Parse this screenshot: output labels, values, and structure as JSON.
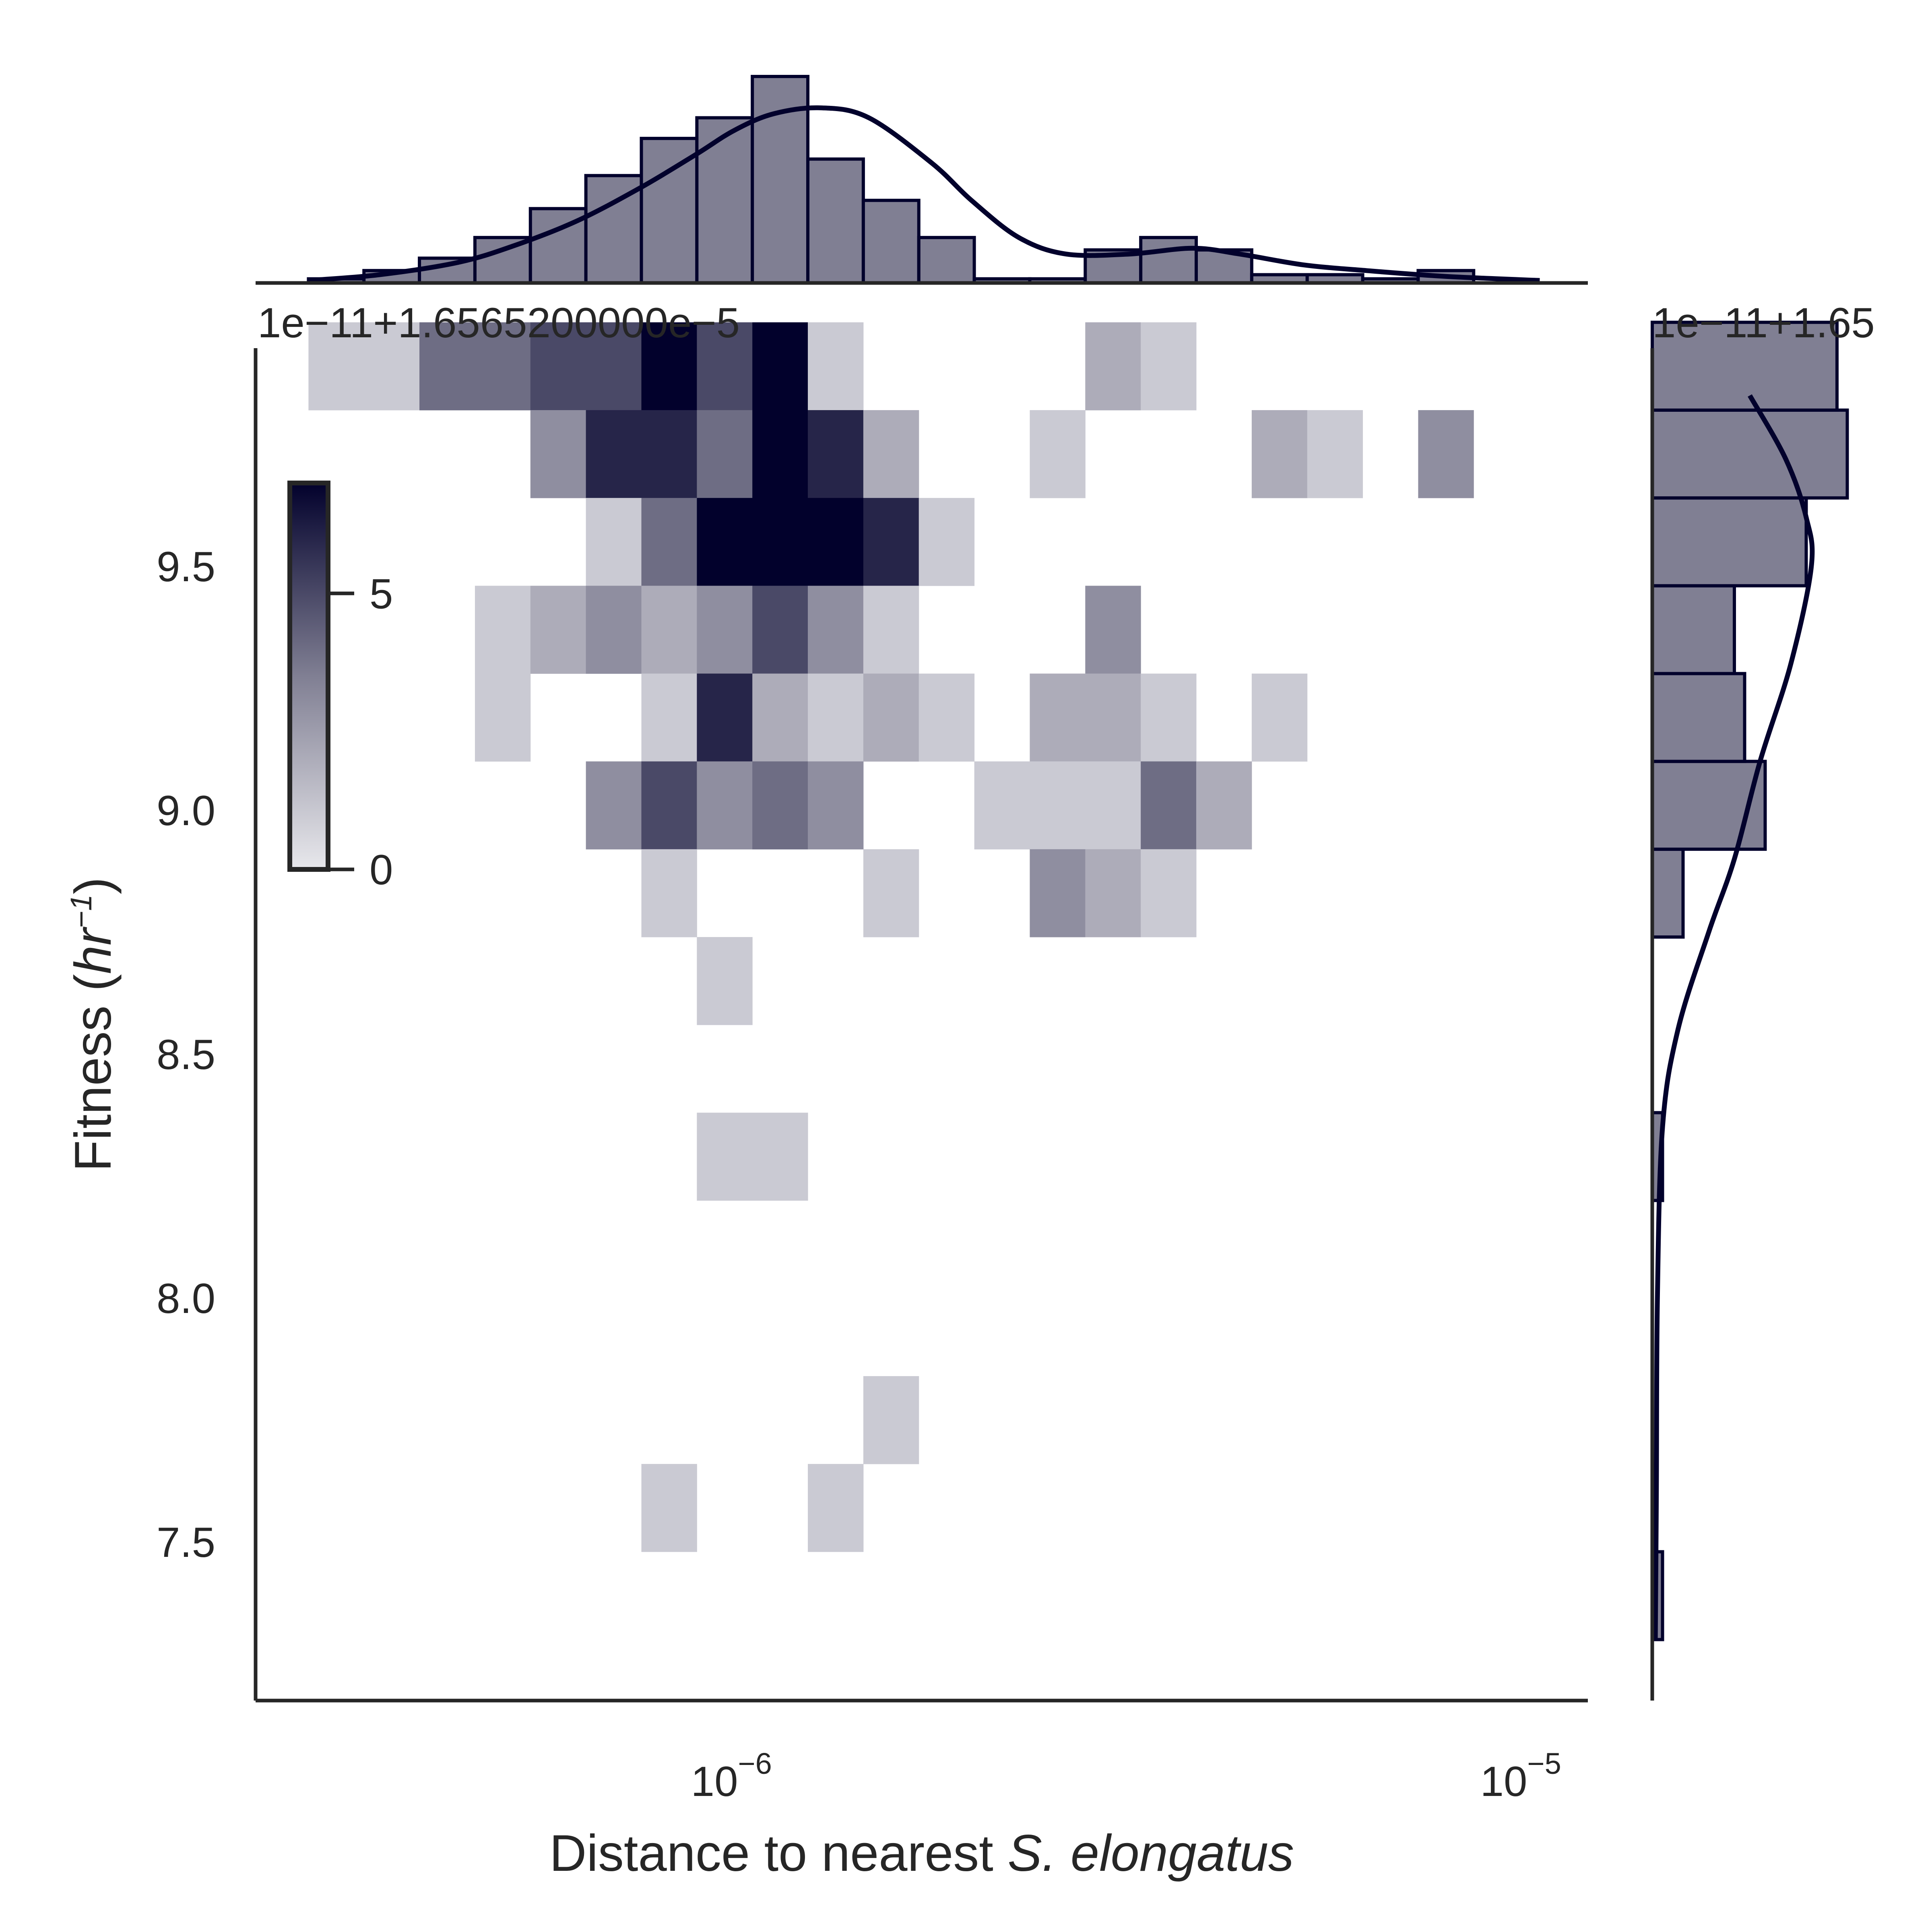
{
  "chart_data": {
    "type": "heatmap",
    "subtype": "jointplot-2d-histogram",
    "xlabel": {
      "pre": "Distance to nearest ",
      "italic": "S. elongatus"
    },
    "ylabel": {
      "pre": "Fitness (",
      "italic": "hr",
      "sup": "−1",
      "post": ")"
    },
    "x_scale": "log",
    "x_log_range": [
      -6.607,
      -4.919
    ],
    "y_range": [
      7.175,
      9.947
    ],
    "x_ticks": [
      {
        "log": -6,
        "base": "10",
        "exp": "−6"
      },
      {
        "log": -5,
        "base": "10",
        "exp": "−5"
      }
    ],
    "y_ticks": [
      {
        "value": 9.5,
        "label": "9.5"
      },
      {
        "value": 9.0,
        "label": "9.0"
      },
      {
        "value": 8.5,
        "label": "8.5"
      },
      {
        "value": 8.0,
        "label": "8.0"
      },
      {
        "value": 7.5,
        "label": "7.5"
      }
    ],
    "offset_label_top": "1e−11+1.6565200000e−5",
    "offset_label_right": "1e−11+1.65",
    "colorbar": {
      "vmin": 0,
      "vmax": 7,
      "ticks": [
        {
          "value": 0,
          "label": "0"
        },
        {
          "value": 5,
          "label": "5"
        }
      ]
    },
    "colors": {
      "dark": "#02012c",
      "bar_fill": "#807f93",
      "axis": "#262626"
    },
    "x_bins": {
      "log_start": -6.54,
      "log_step": 0.0703,
      "count": 21
    },
    "y_bins": {
      "start": 7.3,
      "step": 0.18,
      "count": 15
    },
    "cells": [
      {
        "xi": 0,
        "yi": 14,
        "count": 1
      },
      {
        "xi": 1,
        "yi": 14,
        "count": 1
      },
      {
        "xi": 2,
        "yi": 14,
        "count": 4
      },
      {
        "xi": 3,
        "yi": 14,
        "count": 4
      },
      {
        "xi": 4,
        "yi": 14,
        "count": 5
      },
      {
        "xi": 5,
        "yi": 14,
        "count": 5
      },
      {
        "xi": 6,
        "yi": 14,
        "count": 7
      },
      {
        "xi": 7,
        "yi": 14,
        "count": 5
      },
      {
        "xi": 8,
        "yi": 14,
        "count": 8
      },
      {
        "xi": 9,
        "yi": 14,
        "count": 1
      },
      {
        "xi": 14,
        "yi": 14,
        "count": 2
      },
      {
        "xi": 15,
        "yi": 14,
        "count": 1
      },
      {
        "xi": 4,
        "yi": 13,
        "count": 3
      },
      {
        "xi": 5,
        "yi": 13,
        "count": 6
      },
      {
        "xi": 6,
        "yi": 13,
        "count": 6
      },
      {
        "xi": 7,
        "yi": 13,
        "count": 4
      },
      {
        "xi": 8,
        "yi": 13,
        "count": 8
      },
      {
        "xi": 9,
        "yi": 13,
        "count": 6
      },
      {
        "xi": 10,
        "yi": 13,
        "count": 2
      },
      {
        "xi": 13,
        "yi": 13,
        "count": 1
      },
      {
        "xi": 17,
        "yi": 13,
        "count": 2
      },
      {
        "xi": 18,
        "yi": 13,
        "count": 1
      },
      {
        "xi": 20,
        "yi": 13,
        "count": 3
      },
      {
        "xi": 5,
        "yi": 12,
        "count": 1
      },
      {
        "xi": 6,
        "yi": 12,
        "count": 4
      },
      {
        "xi": 7,
        "yi": 12,
        "count": 8
      },
      {
        "xi": 8,
        "yi": 12,
        "count": 8
      },
      {
        "xi": 9,
        "yi": 12,
        "count": 8
      },
      {
        "xi": 10,
        "yi": 12,
        "count": 6
      },
      {
        "xi": 11,
        "yi": 12,
        "count": 1
      },
      {
        "xi": 3,
        "yi": 11,
        "count": 1
      },
      {
        "xi": 4,
        "yi": 11,
        "count": 2
      },
      {
        "xi": 5,
        "yi": 11,
        "count": 3
      },
      {
        "xi": 6,
        "yi": 11,
        "count": 2
      },
      {
        "xi": 7,
        "yi": 11,
        "count": 3
      },
      {
        "xi": 8,
        "yi": 11,
        "count": 5
      },
      {
        "xi": 9,
        "yi": 11,
        "count": 3
      },
      {
        "xi": 10,
        "yi": 11,
        "count": 1
      },
      {
        "xi": 14,
        "yi": 11,
        "count": 3
      },
      {
        "xi": 3,
        "yi": 10,
        "count": 1
      },
      {
        "xi": 6,
        "yi": 10,
        "count": 1
      },
      {
        "xi": 7,
        "yi": 10,
        "count": 6
      },
      {
        "xi": 8,
        "yi": 10,
        "count": 2
      },
      {
        "xi": 9,
        "yi": 10,
        "count": 1
      },
      {
        "xi": 10,
        "yi": 10,
        "count": 2
      },
      {
        "xi": 11,
        "yi": 10,
        "count": 1
      },
      {
        "xi": 13,
        "yi": 10,
        "count": 2
      },
      {
        "xi": 14,
        "yi": 10,
        "count": 2
      },
      {
        "xi": 15,
        "yi": 10,
        "count": 1
      },
      {
        "xi": 17,
        "yi": 10,
        "count": 1
      },
      {
        "xi": 5,
        "yi": 9,
        "count": 3
      },
      {
        "xi": 6,
        "yi": 9,
        "count": 5
      },
      {
        "xi": 7,
        "yi": 9,
        "count": 3
      },
      {
        "xi": 8,
        "yi": 9,
        "count": 4
      },
      {
        "xi": 9,
        "yi": 9,
        "count": 3
      },
      {
        "xi": 12,
        "yi": 9,
        "count": 1
      },
      {
        "xi": 13,
        "yi": 9,
        "count": 1
      },
      {
        "xi": 14,
        "yi": 9,
        "count": 1
      },
      {
        "xi": 15,
        "yi": 9,
        "count": 4
      },
      {
        "xi": 16,
        "yi": 9,
        "count": 2
      },
      {
        "xi": 6,
        "yi": 8,
        "count": 1
      },
      {
        "xi": 10,
        "yi": 8,
        "count": 1
      },
      {
        "xi": 13,
        "yi": 8,
        "count": 3
      },
      {
        "xi": 14,
        "yi": 8,
        "count": 2
      },
      {
        "xi": 15,
        "yi": 8,
        "count": 1
      },
      {
        "xi": 7,
        "yi": 7,
        "count": 1
      },
      {
        "xi": 7,
        "yi": 5,
        "count": 1
      },
      {
        "xi": 8,
        "yi": 5,
        "count": 1
      },
      {
        "xi": 10,
        "yi": 2,
        "count": 1
      },
      {
        "xi": 6,
        "yi": 1,
        "count": 1
      },
      {
        "xi": 9,
        "yi": 1,
        "count": 1
      }
    ],
    "x_marginal": {
      "bin_log_start": -6.54,
      "bin_log_step": 0.0703,
      "counts": [
        0.5,
        1.5,
        3,
        5.5,
        9,
        13,
        17.5,
        20,
        25,
        15,
        10,
        5.5,
        0.5,
        0.5,
        4,
        5.5,
        4,
        1,
        1,
        0.5,
        1.5
      ],
      "kde_x_log": [
        -6.54,
        -6.45,
        -6.35,
        -6.28,
        -6.2,
        -6.12,
        -6.05,
        -6.0,
        -5.95,
        -5.89,
        -5.83,
        -5.75,
        -5.7,
        -5.64,
        -5.58,
        -5.5,
        -5.42,
        -5.36,
        -5.28,
        -5.2,
        -5.1,
        -4.98
      ],
      "kde_y": [
        0.3,
        1.0,
        2.5,
        4.5,
        7.5,
        11.5,
        15.5,
        18.5,
        20.5,
        21.2,
        20.0,
        14.5,
        10.0,
        5.5,
        3.5,
        3.5,
        4.2,
        3.5,
        2.2,
        1.5,
        0.8,
        0.3
      ],
      "scale_max": 25
    },
    "y_marginal": {
      "bin_start": 7.3,
      "bin_step": 0.18,
      "counts": [
        0.1,
        0,
        0,
        0,
        0,
        0.1,
        0,
        0,
        0.3,
        1.1,
        0.9,
        0.8,
        1.5,
        1.9,
        1.8
      ],
      "kde_y": [
        7.3,
        7.6,
        8.0,
        8.35,
        8.55,
        8.75,
        8.9,
        9.1,
        9.3,
        9.5,
        9.6,
        9.72,
        9.85
      ],
      "kde_x": [
        0.03,
        0.04,
        0.05,
        0.1,
        0.25,
        0.55,
        0.8,
        1.05,
        1.35,
        1.55,
        1.5,
        1.3,
        0.95
      ],
      "scale_max": 2.0
    }
  }
}
